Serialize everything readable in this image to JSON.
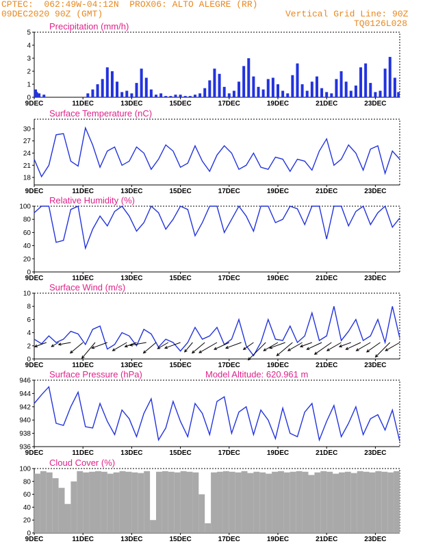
{
  "header": {
    "line1_left": "CPTEC:  062:49W-04:12N  PROX06: ALTO ALEGRE (RR)",
    "line2_left": "09DEC2020 90Z (GMT)",
    "line2_right": "Vertical Grid Line: 90Z",
    "line3_right": "TQ0126L028"
  },
  "colors": {
    "header": "#e8871e",
    "title": "#e0218a",
    "series": "#2233dd",
    "cloud": "#a9a9a9",
    "grid": "#000000"
  },
  "x_tick_labels": [
    "9DEC",
    "11DEC",
    "13DEC",
    "15DEC",
    "17DEC",
    "19DEC",
    "21DEC",
    "23DEC"
  ],
  "chart_data": [
    {
      "type": "bar",
      "title": "Precipitation (mm/h)",
      "ylim": [
        0,
        5
      ],
      "yticks": [
        "0",
        "1",
        "2",
        "3",
        "4",
        "5"
      ],
      "x_unit": "days after 9DEC 00Z",
      "x": [
        0.0,
        0.1,
        0.2,
        0.4,
        2.2,
        2.4,
        2.6,
        2.8,
        3.0,
        3.2,
        3.4,
        3.6,
        3.8,
        4.0,
        4.2,
        4.4,
        4.6,
        4.8,
        5.0,
        5.2,
        5.4,
        5.6,
        5.8,
        6.0,
        6.2,
        6.4,
        6.6,
        6.8,
        7.0,
        7.2,
        7.4,
        7.6,
        7.8,
        8.0,
        8.2,
        8.4,
        8.6,
        8.8,
        9.0,
        9.2,
        9.4,
        9.6,
        9.8,
        10.0,
        10.2,
        10.4,
        10.6,
        10.8,
        11.0,
        11.2,
        11.4,
        11.6,
        11.8,
        12.0,
        12.2,
        12.4,
        12.6,
        12.8,
        13.0,
        13.2,
        13.4,
        13.6,
        13.8,
        14.0,
        14.2,
        14.4,
        14.6,
        14.8,
        14.95
      ],
      "values": [
        0.6,
        0.4,
        0.3,
        0.2,
        0.3,
        0.6,
        1.0,
        1.4,
        2.3,
        2.0,
        1.2,
        0.4,
        0.5,
        0.3,
        1.1,
        2.2,
        1.5,
        0.6,
        0.2,
        0.3,
        0.1,
        0.1,
        0.2,
        0.2,
        0.1,
        0.1,
        0.2,
        0.3,
        0.7,
        1.3,
        2.2,
        1.8,
        0.8,
        0.3,
        0.5,
        1.2,
        2.4,
        3.0,
        1.6,
        0.8,
        0.6,
        1.4,
        1.5,
        1.0,
        0.5,
        0.3,
        1.7,
        2.6,
        1.0,
        0.5,
        1.2,
        1.6,
        0.7,
        0.4,
        0.3,
        1.4,
        2.0,
        1.2,
        0.5,
        0.9,
        2.3,
        2.6,
        1.1,
        0.4,
        0.5,
        2.2,
        3.1,
        1.5,
        0.4
      ]
    },
    {
      "type": "line",
      "title": "Surface Temperature (nC)",
      "ylim": [
        17.5,
        31
      ],
      "yticks": [
        "18",
        "21",
        "24",
        "27",
        "30"
      ],
      "x_unit": "days after 9DEC 00Z",
      "x": [
        0,
        0.3,
        0.6,
        0.9,
        1.2,
        1.5,
        1.8,
        2.1,
        2.4,
        2.7,
        3.0,
        3.3,
        3.6,
        3.9,
        4.2,
        4.5,
        4.8,
        5.1,
        5.4,
        5.7,
        6.0,
        6.3,
        6.6,
        6.9,
        7.2,
        7.5,
        7.8,
        8.1,
        8.4,
        8.7,
        9.0,
        9.3,
        9.6,
        9.9,
        10.2,
        10.5,
        10.8,
        11.1,
        11.4,
        11.7,
        12.0,
        12.3,
        12.6,
        12.9,
        13.2,
        13.5,
        13.8,
        14.1,
        14.4,
        14.7,
        15.0
      ],
      "values": [
        22.5,
        18.2,
        21.0,
        28.5,
        28.8,
        22.0,
        20.8,
        30.2,
        26.0,
        20.5,
        24.5,
        25.5,
        21.0,
        22.0,
        25.5,
        24.0,
        20.0,
        22.5,
        26.0,
        24.5,
        20.5,
        21.5,
        25.8,
        22.0,
        19.5,
        23.5,
        25.8,
        24.0,
        20.0,
        21.0,
        24.0,
        20.5,
        20.0,
        23.0,
        22.5,
        19.5,
        22.5,
        22.0,
        19.8,
        24.5,
        27.5,
        21.0,
        22.5,
        26.0,
        24.0,
        19.8,
        25.0,
        25.8,
        19.0,
        24.5,
        22.5
      ]
    },
    {
      "type": "line",
      "title": "Relative Humidity (%)",
      "ylim": [
        0,
        100
      ],
      "yticks": [
        "0",
        "20",
        "40",
        "60",
        "80",
        "100"
      ],
      "x_unit": "days after 9DEC 00Z",
      "x": [
        0,
        0.3,
        0.6,
        0.9,
        1.2,
        1.5,
        1.8,
        2.1,
        2.4,
        2.7,
        3.0,
        3.3,
        3.6,
        3.9,
        4.2,
        4.5,
        4.8,
        5.1,
        5.4,
        5.7,
        6.0,
        6.3,
        6.6,
        6.9,
        7.2,
        7.5,
        7.8,
        8.1,
        8.4,
        8.7,
        9.0,
        9.3,
        9.6,
        9.9,
        10.2,
        10.5,
        10.8,
        11.1,
        11.4,
        11.7,
        12.0,
        12.3,
        12.6,
        12.9,
        13.2,
        13.5,
        13.8,
        14.1,
        14.4,
        14.7,
        15.0
      ],
      "values": [
        90,
        100,
        100,
        45,
        48,
        95,
        100,
        36,
        65,
        85,
        70,
        92,
        100,
        85,
        62,
        75,
        100,
        90,
        65,
        80,
        100,
        95,
        55,
        75,
        100,
        100,
        60,
        80,
        100,
        85,
        62,
        100,
        100,
        75,
        80,
        100,
        96,
        72,
        100,
        100,
        50,
        100,
        100,
        70,
        92,
        100,
        72,
        90,
        100,
        68,
        82
      ]
    },
    {
      "type": "line",
      "title": "Surface Wind (m/s)",
      "ylim": [
        0,
        10
      ],
      "yticks": [
        "0",
        "2",
        "4",
        "6",
        "8",
        "10"
      ],
      "x_unit": "days after 9DEC 00Z",
      "x": [
        0,
        0.3,
        0.6,
        0.9,
        1.2,
        1.5,
        1.8,
        2.1,
        2.4,
        2.7,
        3.0,
        3.3,
        3.6,
        3.9,
        4.2,
        4.5,
        4.8,
        5.1,
        5.4,
        5.7,
        6.0,
        6.3,
        6.6,
        6.9,
        7.2,
        7.5,
        7.8,
        8.1,
        8.4,
        8.7,
        9.0,
        9.3,
        9.6,
        9.9,
        10.2,
        10.5,
        10.8,
        11.1,
        11.4,
        11.7,
        12.0,
        12.3,
        12.6,
        12.9,
        13.2,
        13.5,
        13.8,
        14.1,
        14.4,
        14.7,
        15.0
      ],
      "values": [
        3.0,
        2.3,
        3.5,
        2.5,
        3.0,
        4.2,
        3.8,
        2.2,
        4.5,
        5.0,
        1.5,
        2.2,
        4.0,
        3.5,
        2.0,
        4.5,
        3.8,
        1.8,
        3.0,
        2.5,
        1.2,
        2.5,
        4.8,
        3.0,
        3.5,
        4.8,
        2.2,
        3.0,
        6.0,
        2.0,
        0.5,
        2.5,
        6.0,
        3.0,
        2.8,
        5.0,
        2.5,
        3.5,
        7.0,
        2.8,
        3.5,
        8.0,
        2.8,
        4.2,
        6.0,
        2.8,
        3.5,
        6.0,
        2.5,
        8.0,
        3.2
      ],
      "vectors_x": [
        0.5,
        1.0,
        1.5,
        2.0,
        2.5,
        3.0,
        3.8,
        4.2,
        4.6,
        5.0,
        5.5,
        6.0,
        6.5,
        7.0,
        7.5,
        8.0,
        8.5,
        9.0,
        9.5,
        10.0,
        10.3,
        10.6,
        11.0,
        11.4,
        11.8,
        12.2,
        12.6,
        13.0,
        13.4,
        13.8,
        14.2,
        14.6,
        15.0
      ],
      "vectors_dir_deg": [
        200,
        210,
        190,
        220,
        230,
        200,
        210,
        200,
        190,
        220,
        210,
        200,
        230,
        220,
        210,
        205,
        200,
        215,
        225,
        210,
        200,
        220,
        210,
        200,
        205,
        215,
        210,
        200,
        205,
        210,
        215,
        225,
        210
      ],
      "vectors_len": [
        3,
        2,
        3,
        4,
        5,
        4,
        4,
        3,
        4,
        4,
        3,
        4,
        3,
        4,
        5,
        4,
        4,
        3,
        6,
        4,
        4,
        5,
        4,
        3,
        4,
        5,
        4,
        3,
        4,
        4,
        4,
        5,
        4
      ]
    },
    {
      "type": "line",
      "title": "Surface Pressure (hPa)",
      "annotation": "Model Altitude: 620.961 m",
      "ylim": [
        936,
        946
      ],
      "yticks": [
        "936",
        "938",
        "940",
        "942",
        "944",
        "946"
      ],
      "x_unit": "days after 9DEC 00Z",
      "x": [
        0,
        0.3,
        0.6,
        0.9,
        1.2,
        1.5,
        1.8,
        2.1,
        2.4,
        2.7,
        3.0,
        3.3,
        3.6,
        3.9,
        4.2,
        4.5,
        4.8,
        5.1,
        5.4,
        5.7,
        6.0,
        6.3,
        6.6,
        6.9,
        7.2,
        7.5,
        7.8,
        8.1,
        8.4,
        8.7,
        9.0,
        9.3,
        9.6,
        9.9,
        10.2,
        10.5,
        10.8,
        11.1,
        11.4,
        11.7,
        12.0,
        12.3,
        12.6,
        12.9,
        13.2,
        13.5,
        13.8,
        14.1,
        14.4,
        14.7,
        15.0
      ],
      "values": [
        942.5,
        943.8,
        945.0,
        939.5,
        939.2,
        942.0,
        944.2,
        939.0,
        938.8,
        942.5,
        939.8,
        937.8,
        941.5,
        940.2,
        937.5,
        941.0,
        943.2,
        937.0,
        938.8,
        942.8,
        939.8,
        937.5,
        942.5,
        941.0,
        937.8,
        942.8,
        943.5,
        938.0,
        941.2,
        942.0,
        937.8,
        941.5,
        940.0,
        937.2,
        941.8,
        938.0,
        937.5,
        941.2,
        942.5,
        937.0,
        939.8,
        942.2,
        937.5,
        939.5,
        942.0,
        937.8,
        940.2,
        940.8,
        938.5,
        941.5,
        936.8
      ]
    },
    {
      "type": "bar",
      "title": "Cloud Cover (%)",
      "ylim": [
        0,
        100
      ],
      "yticks": [
        "0",
        "20",
        "40",
        "60",
        "80",
        "100"
      ],
      "x_unit": "days after 9DEC 00Z",
      "x": [
        0,
        0.25,
        0.5,
        0.75,
        1.0,
        1.25,
        1.5,
        1.75,
        2.0,
        2.25,
        2.5,
        2.75,
        3.0,
        3.25,
        3.5,
        3.75,
        4.0,
        4.25,
        4.5,
        4.75,
        5.0,
        5.25,
        5.5,
        5.75,
        6.0,
        6.25,
        6.5,
        6.75,
        7.0,
        7.25,
        7.5,
        7.75,
        8.0,
        8.25,
        8.5,
        8.75,
        9.0,
        9.25,
        9.5,
        9.75,
        10.0,
        10.25,
        10.5,
        10.75,
        11.0,
        11.25,
        11.5,
        11.75,
        12.0,
        12.25,
        12.5,
        12.75,
        13.0,
        13.25,
        13.5,
        13.75,
        14.0,
        14.25,
        14.5,
        14.75
      ],
      "values": [
        92,
        96,
        94,
        85,
        70,
        45,
        80,
        96,
        94,
        95,
        96,
        95,
        92,
        94,
        96,
        95,
        94,
        93,
        96,
        20,
        95,
        96,
        95,
        94,
        96,
        95,
        94,
        60,
        15,
        94,
        95,
        96,
        95,
        94,
        96,
        93,
        95,
        94,
        92,
        95,
        96,
        94,
        95,
        96,
        95,
        90,
        94,
        96,
        95,
        92,
        94,
        95,
        93,
        96,
        95,
        94,
        96,
        95,
        94,
        96
      ]
    }
  ]
}
